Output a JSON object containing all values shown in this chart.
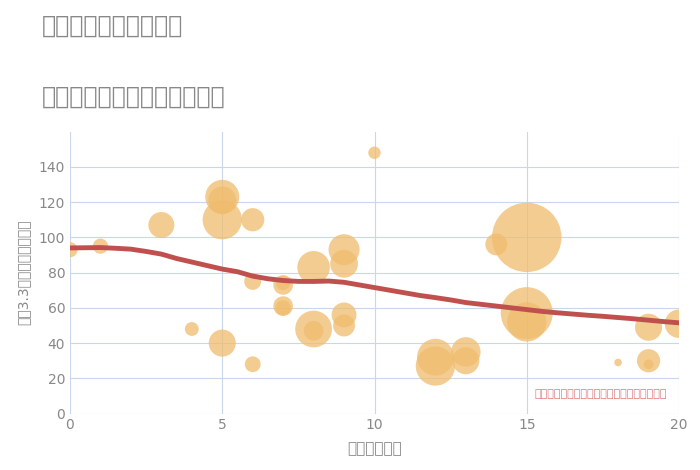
{
  "title_line1": "奈良県奈良市菅野台の",
  "title_line2": "駅距離別中古マンション価格",
  "xlabel": "駅距離（分）",
  "ylabel": "坪（3.3㎡）単価（万円）",
  "annotation": "円の大きさは、取引のあった物件面積を示す",
  "bg_color": "#ffffff",
  "plot_bg_color": "#ffffff",
  "bubble_color": "#f0bc6e",
  "bubble_alpha": 0.75,
  "line_color": "#c0504d",
  "line_width": 3.5,
  "grid_color": "#c8d8ea",
  "title_color": "#888888",
  "axis_color": "#888888",
  "annotation_color": "#e07878",
  "xlim": [
    0,
    20
  ],
  "ylim": [
    0,
    160
  ],
  "yticks": [
    0,
    20,
    40,
    60,
    80,
    100,
    120,
    140
  ],
  "xticks": [
    0,
    5,
    10,
    15,
    20
  ],
  "scatter_x": [
    0,
    1,
    3,
    5,
    5,
    5,
    6,
    6,
    7,
    7,
    7,
    8,
    8,
    9,
    9,
    9,
    10,
    12,
    13,
    14,
    15,
    15,
    19,
    19,
    20
  ],
  "scatter_y": [
    93,
    95,
    107,
    123,
    121,
    110,
    75,
    110,
    73,
    61,
    60,
    83,
    48,
    93,
    85,
    56,
    148,
    27,
    35,
    96,
    100,
    52,
    28,
    49,
    51
  ],
  "scatter_sizes": [
    120,
    120,
    350,
    600,
    400,
    800,
    150,
    280,
    200,
    200,
    120,
    550,
    700,
    500,
    400,
    320,
    80,
    800,
    450,
    250,
    2500,
    800,
    50,
    380,
    420
  ],
  "extra_x": [
    4,
    5,
    6,
    7,
    8,
    9,
    12,
    13,
    15,
    18,
    19
  ],
  "extra_y": [
    48,
    40,
    28,
    74,
    47,
    50,
    32,
    30,
    57,
    29,
    30
  ],
  "extra_sizes": [
    100,
    380,
    130,
    100,
    200,
    250,
    700,
    380,
    1400,
    30,
    280
  ],
  "trend_x": [
    0,
    0.5,
    1,
    1.5,
    2,
    2.5,
    3,
    3.5,
    4,
    4.5,
    5,
    5.5,
    6,
    6.5,
    7,
    7.5,
    8,
    8.5,
    9,
    9.5,
    10,
    10.5,
    11,
    11.5,
    12,
    12.5,
    13,
    13.5,
    14,
    14.5,
    15,
    15.5,
    16,
    16.5,
    17,
    17.5,
    18,
    18.5,
    19,
    19.5,
    20
  ],
  "trend_y": [
    94,
    94.1,
    94.2,
    93.8,
    93.3,
    92,
    90.5,
    88,
    86,
    84,
    82,
    80.5,
    78,
    76.5,
    75.5,
    75,
    75,
    75.2,
    74.5,
    73,
    71.5,
    70,
    68.5,
    67,
    65.8,
    64.5,
    63,
    62,
    61,
    60,
    59,
    58,
    57.2,
    56.5,
    55.8,
    55.2,
    54.5,
    53.8,
    53,
    52.2,
    51.5
  ]
}
